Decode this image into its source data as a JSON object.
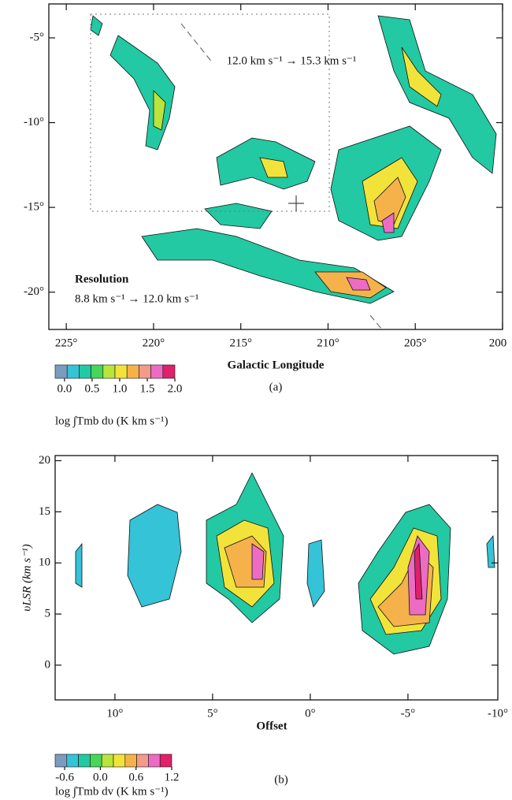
{
  "chart_data": [
    {
      "type": "contour",
      "xlabel": "Galactic Longitude",
      "panel_label": "(a)",
      "xlim": [
        226,
        200
      ],
      "ylim": [
        -22.2,
        -3
      ],
      "xticks": [
        {
          "value": 225,
          "label": "225°"
        },
        {
          "value": 220,
          "label": "220°"
        },
        {
          "value": 215,
          "label": "215°"
        },
        {
          "value": 210,
          "label": "210°"
        },
        {
          "value": 205,
          "label": "205°"
        },
        {
          "value": 200,
          "label": "200"
        }
      ],
      "yticks": [
        {
          "value": -5,
          "label": "-5°"
        },
        {
          "value": -10,
          "label": "-10°"
        },
        {
          "value": -15,
          "label": "-15°"
        },
        {
          "value": -20,
          "label": "-20°"
        }
      ],
      "annotations": [
        "12.0 km s⁻¹ → 15.3 km s⁻¹",
        "Resolution",
        "8.8 km s⁻¹ → 12.0 km s⁻¹"
      ],
      "colorbar": {
        "label": "log ∫T​mb dυ (K km s⁻¹)",
        "lim": [
          -0.17,
          2.0
        ],
        "colors": [
          "#7a9cc0",
          "#35c3d8",
          "#22c9a2",
          "#47d65a",
          "#b9e43c",
          "#f2e33a",
          "#f5b24a",
          "#f49a8a",
          "#ec6cc4",
          "#e0206a"
        ],
        "ticks": [
          {
            "value": 0,
            "label": "0.0"
          },
          0.5,
          {
            "value": 1,
            "label": "1.0"
          },
          1.5,
          {
            "value": 2,
            "label": "2.0"
          }
        ]
      }
    },
    {
      "type": "contour",
      "xlabel": "Offset",
      "ylabel": "υLSR (km s⁻¹)",
      "panel_label": "(b)",
      "xlim": [
        13.06,
        -9.6
      ],
      "ylim": [
        -3.4,
        20.5
      ],
      "xticks": [
        {
          "value": 10,
          "label": "10°"
        },
        {
          "value": 5,
          "label": "5°"
        },
        {
          "value": 0,
          "label": "0°"
        },
        {
          "value": -5,
          "label": "-5°"
        },
        {
          "value": -10,
          "label": "-10°"
        }
      ],
      "yticks": [
        0,
        5,
        10,
        15,
        20
      ],
      "colorbar": {
        "label": "log ∫T​mb dv (K km s⁻¹)",
        "lim": [
          -0.76,
          1.2
        ],
        "colors": [
          "#7a9cc0",
          "#35c3d8",
          "#22c9a2",
          "#47d65a",
          "#b9e43c",
          "#f2e33a",
          "#f5b24a",
          "#f49a8a",
          "#ec6cc4",
          "#e0206a"
        ],
        "ticks": [
          -0.6,
          {
            "value": 0,
            "label": "0.0"
          },
          0.6,
          1.2
        ]
      }
    }
  ]
}
